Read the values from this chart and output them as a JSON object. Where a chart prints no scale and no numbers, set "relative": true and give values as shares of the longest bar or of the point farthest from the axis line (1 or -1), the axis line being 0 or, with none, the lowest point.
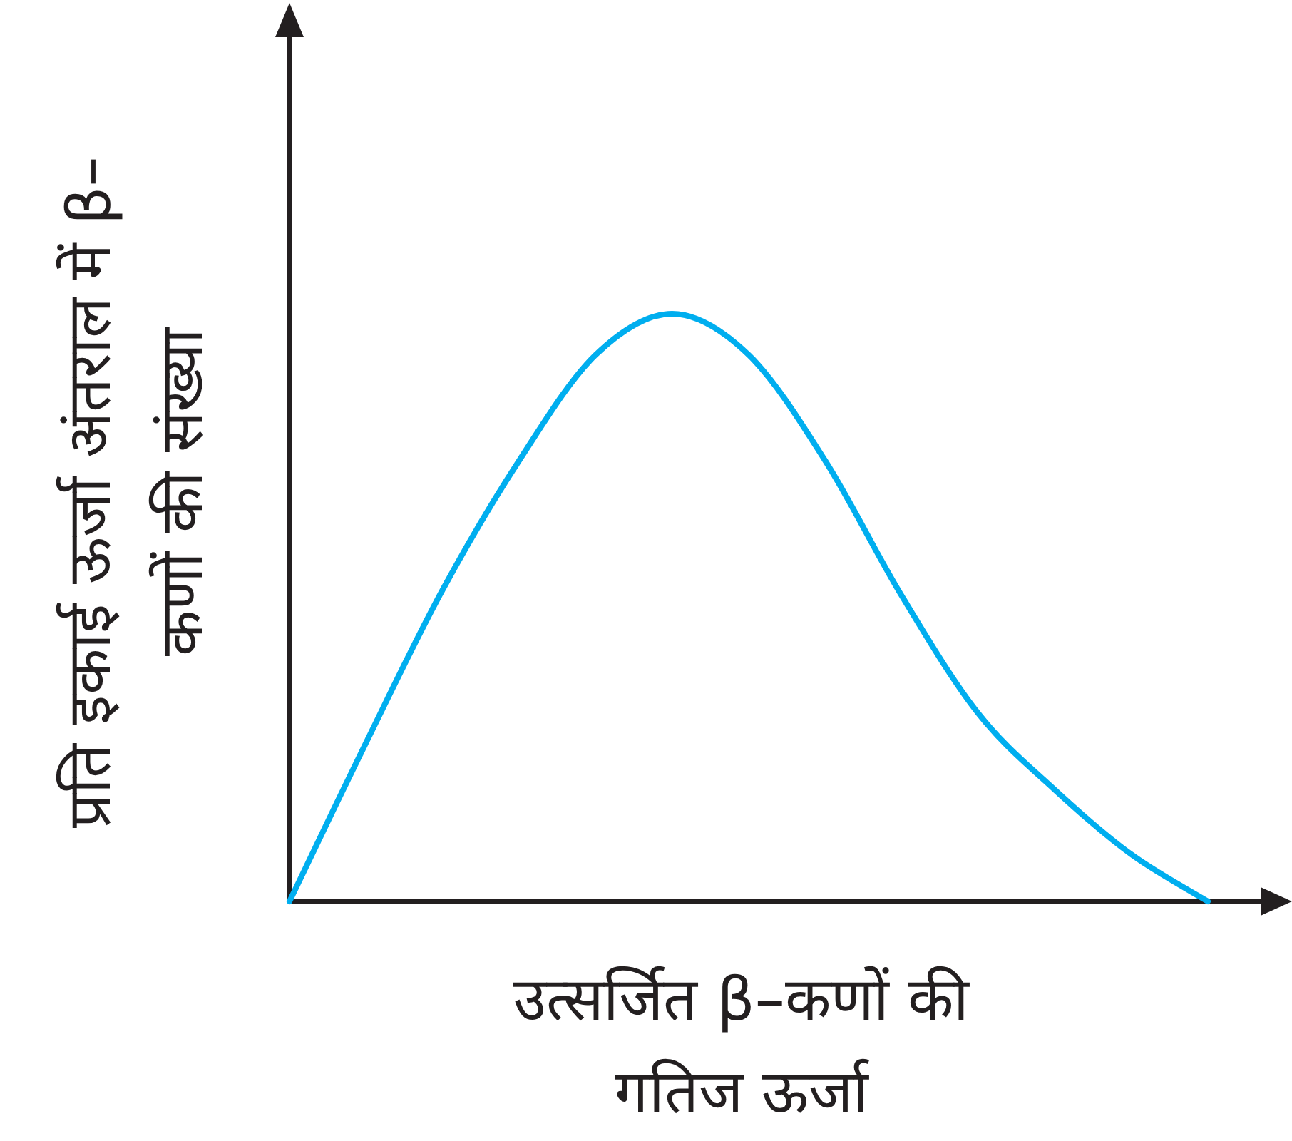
{
  "chart_data": {
    "type": "line",
    "relative": true,
    "xlabel": "उत्सर्जित β–कणों की गतिज ऊर्जा",
    "ylabel": "प्रति इकाई ऊर्जा अंतराल में β–कणों की संख्या",
    "categories": [
      null,
      null,
      null,
      null,
      null,
      null,
      null,
      null,
      null,
      null,
      null,
      null,
      null
    ],
    "series": [
      {
        "color": "#00aeef",
        "values": [
          0,
          0.27,
          0.53,
          0.75,
          0.93,
          1.0,
          0.93,
          0.75,
          0.52,
          0.32,
          0.19,
          0.08,
          0
        ]
      }
    ]
  }
}
